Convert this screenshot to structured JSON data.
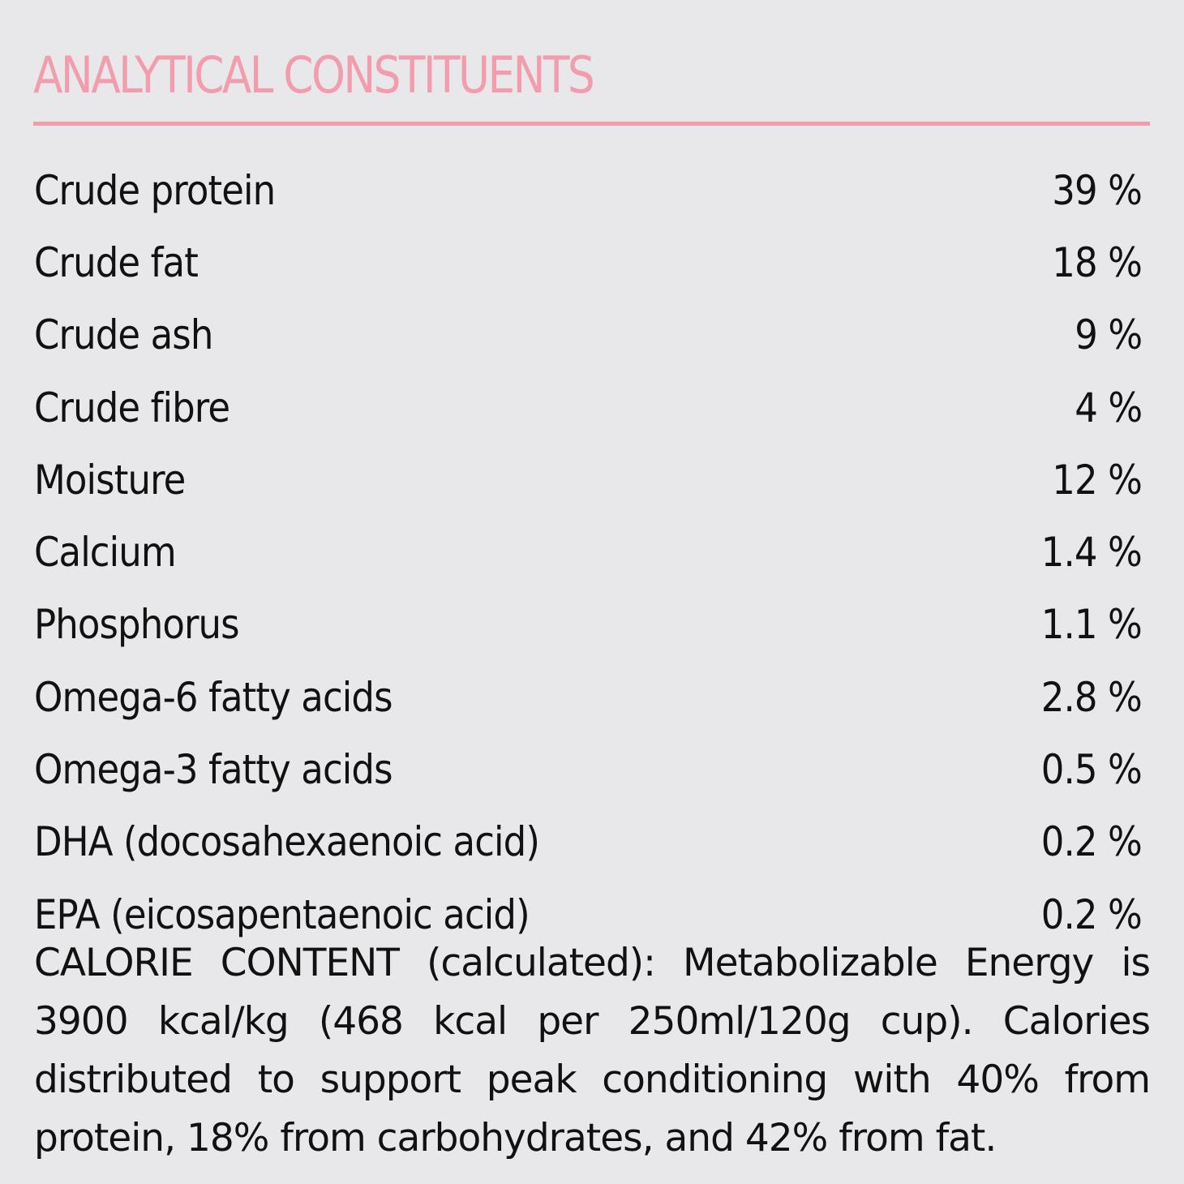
{
  "header": {
    "title": "ANALYTICAL CONSTITUENTS"
  },
  "table": {
    "rows": [
      [
        "Crude protein",
        "39 %"
      ],
      [
        "Crude fat",
        "18 %"
      ],
      [
        "Crude ash",
        "9 %"
      ],
      [
        "Crude fibre",
        "4 %"
      ],
      [
        "Moisture",
        "12 %"
      ],
      [
        "Calcium",
        "1.4 %"
      ],
      [
        "Phosphorus",
        "1.1 %"
      ],
      [
        "Omega-6 fatty acids",
        "2.8 %"
      ],
      [
        "Omega-3 fatty acids",
        "0.5 %"
      ],
      [
        "DHA (docosahexaenoic acid)",
        "0.2 %"
      ],
      [
        "EPA (eicosapentaenoic acid)",
        "0.2 %"
      ]
    ]
  },
  "note": "CALORIE CONTENT (calculated): Metabolizable Energy is 3900 kcal/kg (468 kcal per 250ml/120g cup). Calories distributed to support peak conditioning with 40% from protein, 18% from carbohydrates, and 42% from fat."
}
